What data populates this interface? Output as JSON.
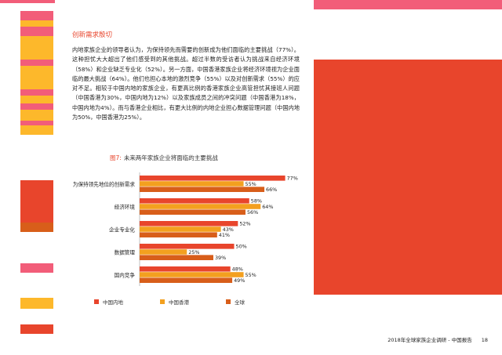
{
  "colors": {
    "red": "#e8452c",
    "orange": "#f3a01f",
    "dark_orange": "#d85e1a",
    "pink": "#f25d79",
    "yellow": "#fdb82b"
  },
  "section": {
    "title": "创新需求殷切"
  },
  "body": {
    "paragraphs": [
      "内地家族企业的领导者认为，为保持领先而需要的创新成为他们面临的主要挑战（77%）。这种担忧大大超出了他们感受到的其他挑战。超过半数的受访者认为挑战来自经济环境（58%）和企业缺乏专业化（52%）。另一方面，中国香港家族企业将经济环境视为企业面临的最大挑战（64%）。他们也担心本地的激烈竞争（55%）以及对创新需求（55%）的应对不足。相较于中国内地的家族企业，有更高比例的香港家族企业高管担忧其接班人问题（中国香港为30%，中国内地为12%）以及家族成员之间的冲突问题（中国香港为18%，中国内地为4%）。而与香港企业相比，有更大比例的内地企业担心数据管理问题（中国内地为50%，中国香港为25%）。"
    ]
  },
  "figure": {
    "number": "图7:",
    "title": "未来两年家族企业将面临的主要挑战"
  },
  "chart_data": {
    "type": "bar",
    "orientation": "horizontal",
    "categories": [
      "为保持领先地位的创新需求",
      "经济环境",
      "企业专业化",
      "数据管理",
      "国内竞争"
    ],
    "series": [
      {
        "name": "中国内地",
        "color": "#e8452c",
        "values": [
          77,
          58,
          52,
          50,
          48
        ],
        "labels": [
          "77%",
          "58%",
          "52%",
          "50%",
          "48%"
        ]
      },
      {
        "name": "中国香港",
        "color": "#f3a01f",
        "values": [
          55,
          64,
          43,
          25,
          55
        ],
        "labels": [
          "55%",
          "64%",
          "43%",
          "25%",
          "55%"
        ]
      },
      {
        "name": "全球",
        "color": "#d85e1a",
        "values": [
          66,
          56,
          41,
          39,
          49
        ],
        "labels": [
          "66%",
          "56%",
          "41%",
          "39%",
          "49%"
        ]
      }
    ],
    "xlim": [
      0,
      100
    ],
    "legend_position": "bottom"
  },
  "footer": {
    "report": "2018年全球家族企业调研 - 中国报告",
    "page": "18"
  }
}
